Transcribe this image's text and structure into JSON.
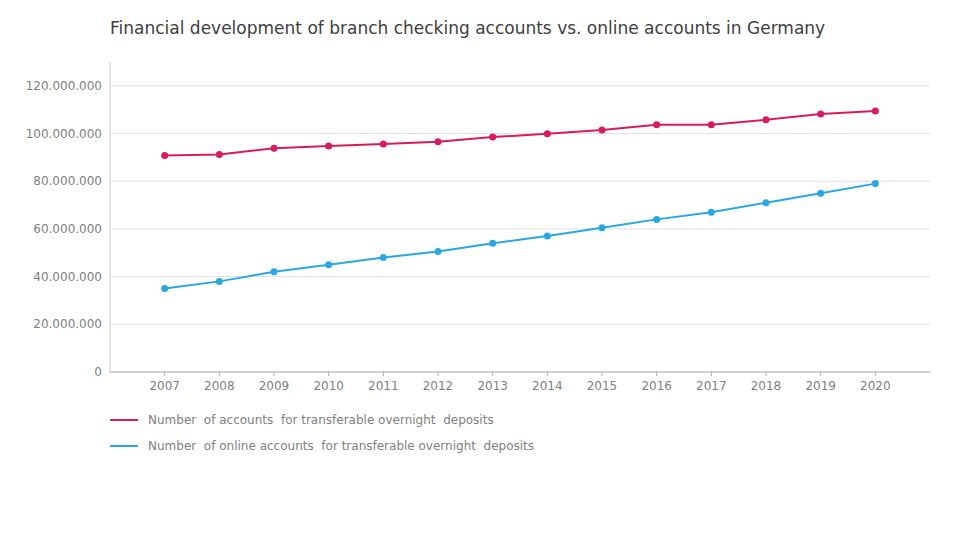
{
  "chart_data": {
    "type": "line",
    "title": "Financial development of branch checking accounts vs. online accounts in Germany",
    "x": [
      2007,
      2008,
      2009,
      2010,
      2011,
      2012,
      2013,
      2014,
      2015,
      2016,
      2017,
      2018,
      2019,
      2020
    ],
    "xlim": [
      2006,
      2021
    ],
    "xticks": [
      2007,
      2008,
      2009,
      2010,
      2011,
      2012,
      2013,
      2014,
      2015,
      2016,
      2017,
      2018,
      2019,
      2020
    ],
    "series": [
      {
        "name": "Number  of accounts  for transferable overnight  deposits",
        "color": "#d81b60",
        "marker": "circle",
        "values": [
          90800000,
          91200000,
          93800000,
          94800000,
          95600000,
          96600000,
          98500000,
          99900000,
          101500000,
          103700000,
          103700000,
          105800000,
          108200000,
          109500000
        ]
      },
      {
        "name": "Number  of online accounts  for transferable overnight  deposits",
        "color": "#29a8e0",
        "marker": "circle",
        "values": [
          35000000,
          38000000,
          42000000,
          45000000,
          48000000,
          50500000,
          54000000,
          57000000,
          60500000,
          64000000,
          67000000,
          71000000,
          75000000,
          79000000
        ]
      }
    ],
    "ylim": [
      0,
      130000000
    ],
    "yticks": [
      0,
      {
        "value": 20000000,
        "label": "20.000.000"
      },
      {
        "value": 40000000,
        "label": "40.000.000"
      },
      {
        "value": 60000000,
        "label": "60.000.000"
      },
      {
        "value": 80000000,
        "label": "80.000.000"
      },
      {
        "value": 100000000,
        "label": "100.000.000"
      },
      {
        "value": 120000000,
        "label": "120.000.000"
      }
    ],
    "grid": true,
    "legend": "bottom"
  }
}
